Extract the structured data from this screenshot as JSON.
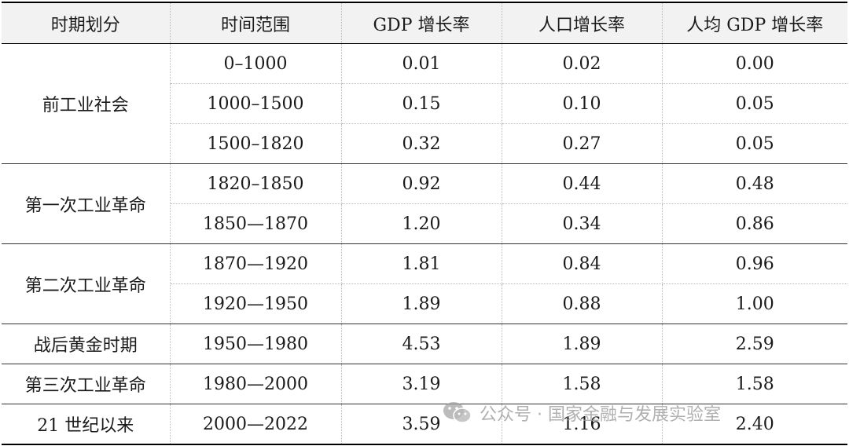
{
  "table": {
    "headers": [
      "时期划分",
      "时间范围",
      "GDP 增长率",
      "人口增长率",
      "人均 GDP 增长率"
    ],
    "groups": [
      {
        "period": "前工业社会",
        "rows": [
          {
            "range": "0–1000",
            "gdp": "0.01",
            "pop": "0.02",
            "pcgdp": "0.00"
          },
          {
            "range": "1000–1500",
            "gdp": "0.15",
            "pop": "0.10",
            "pcgdp": "0.05"
          },
          {
            "range": "1500–1820",
            "gdp": "0.32",
            "pop": "0.27",
            "pcgdp": "0.05"
          }
        ]
      },
      {
        "period": "第一次工业革命",
        "rows": [
          {
            "range": "1820–1850",
            "gdp": "0.92",
            "pop": "0.44",
            "pcgdp": "0.48"
          },
          {
            "range": "1850—1870",
            "gdp": "1.20",
            "pop": "0.34",
            "pcgdp": "0.86"
          }
        ]
      },
      {
        "period": "第二次工业革命",
        "rows": [
          {
            "range": "1870—1920",
            "gdp": "1.81",
            "pop": "0.84",
            "pcgdp": "0.96"
          },
          {
            "range": "1920—1950",
            "gdp": "1.89",
            "pop": "0.88",
            "pcgdp": "1.00"
          }
        ]
      },
      {
        "period": "战后黄金时期",
        "rows": [
          {
            "range": "1950—1980",
            "gdp": "4.53",
            "pop": "1.89",
            "pcgdp": "2.59"
          }
        ]
      },
      {
        "period": "第三次工业革命",
        "rows": [
          {
            "range": "1980—2000",
            "gdp": "3.19",
            "pop": "1.58",
            "pcgdp": "1.58"
          }
        ]
      },
      {
        "period": "21 世纪以来",
        "rows": [
          {
            "range": "2000—2022",
            "gdp": "3.59",
            "pop": "1.16",
            "pcgdp": "2.40"
          }
        ]
      }
    ]
  },
  "watermark": {
    "icon": "wechat-icon",
    "text": "公众号 · 国家金融与发展实验室"
  }
}
